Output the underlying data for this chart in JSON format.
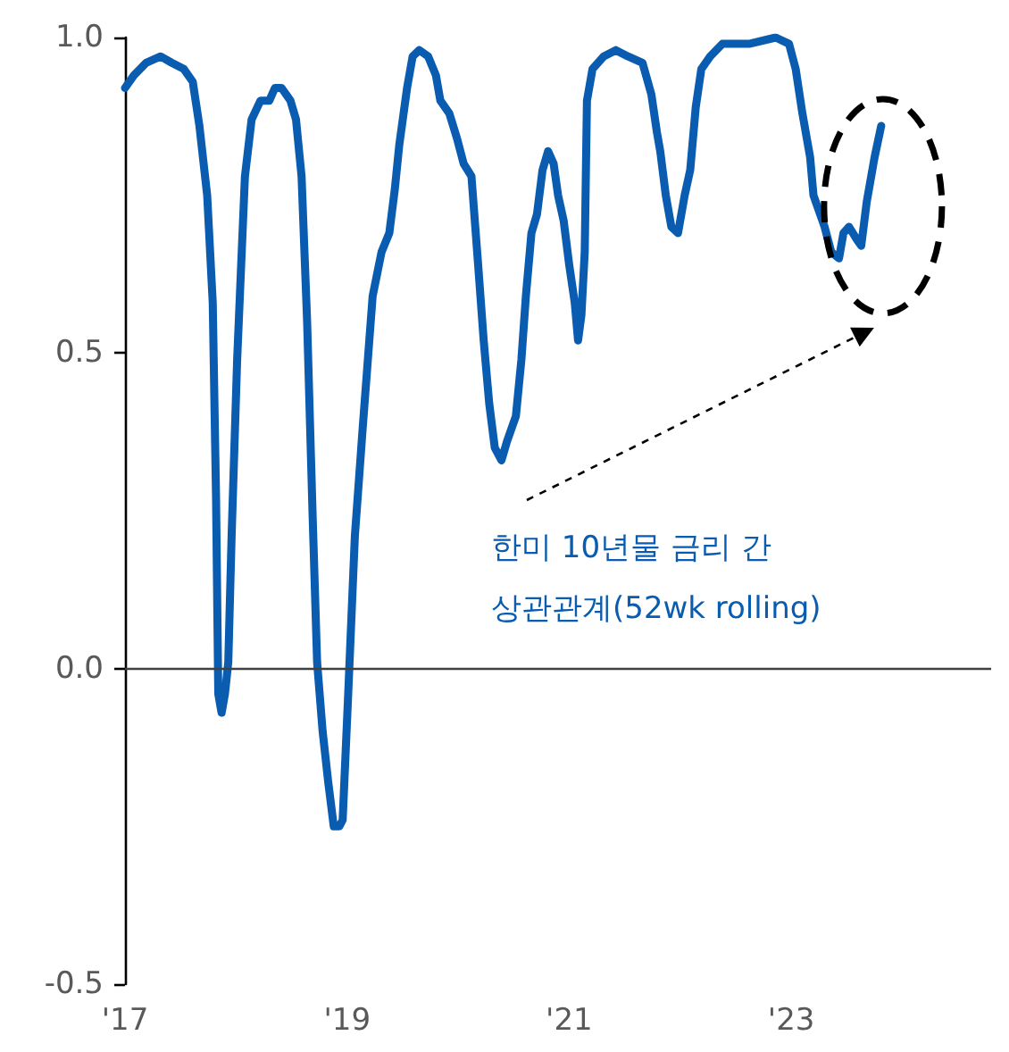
{
  "chart_data": {
    "type": "line",
    "x": [
      2017.0,
      2017.08,
      2017.19,
      2017.32,
      2017.42,
      2017.53,
      2017.61,
      2017.67,
      2017.74,
      2017.79,
      2017.82,
      2017.84,
      2017.87,
      2017.9,
      2017.93,
      2017.96,
      2018.01,
      2018.08,
      2018.14,
      2018.22,
      2018.3,
      2018.35,
      2018.41,
      2018.49,
      2018.54,
      2018.59,
      2018.64,
      2018.69,
      2018.73,
      2018.78,
      2018.83,
      2018.88,
      2018.93,
      2018.96,
      2019.01,
      2019.07,
      2019.14,
      2019.23,
      2019.31,
      2019.38,
      2019.43,
      2019.47,
      2019.54,
      2019.59,
      2019.65,
      2019.73,
      2019.8,
      2019.84,
      2019.92,
      2019.99,
      2020.05,
      2020.12,
      2020.18,
      2020.23,
      2020.28,
      2020.33,
      2020.39,
      2020.44,
      2020.52,
      2020.57,
      2020.61,
      2020.66,
      2020.71,
      2020.76,
      2020.81,
      2020.86,
      2020.9,
      2020.95,
      2021.0,
      2021.05,
      2021.08,
      2021.11,
      2021.14,
      2021.16,
      2021.21,
      2021.31,
      2021.42,
      2021.53,
      2021.66,
      2021.74,
      2021.79,
      2021.82,
      2021.87,
      2021.92,
      2021.98,
      2022.04,
      2022.09,
      2022.14,
      2022.19,
      2022.27,
      2022.38,
      2022.51,
      2022.62,
      2022.86,
      2022.98,
      2023.04,
      2023.1,
      2023.17,
      2023.2,
      2023.3,
      2023.36,
      2023.43,
      2023.47,
      2023.52,
      2023.59,
      2023.63,
      2023.68,
      2023.75,
      2023.81
    ],
    "series": [
      {
        "color": "#0a5cb0",
        "values": [
          0.92,
          0.94,
          0.96,
          0.97,
          0.96,
          0.95,
          0.93,
          0.86,
          0.75,
          0.58,
          0.27,
          -0.04,
          -0.07,
          -0.04,
          0.01,
          0.21,
          0.49,
          0.78,
          0.87,
          0.9,
          0.9,
          0.92,
          0.92,
          0.9,
          0.87,
          0.78,
          0.55,
          0.24,
          0.01,
          -0.1,
          -0.18,
          -0.25,
          -0.25,
          -0.24,
          -0.04,
          0.21,
          0.38,
          0.59,
          0.66,
          0.69,
          0.76,
          0.83,
          0.92,
          0.97,
          0.98,
          0.97,
          0.94,
          0.9,
          0.88,
          0.84,
          0.8,
          0.78,
          0.64,
          0.52,
          0.42,
          0.35,
          0.33,
          0.36,
          0.4,
          0.49,
          0.59,
          0.69,
          0.72,
          0.79,
          0.82,
          0.8,
          0.75,
          0.71,
          0.64,
          0.58,
          0.52,
          0.56,
          0.66,
          0.9,
          0.95,
          0.97,
          0.98,
          0.97,
          0.96,
          0.91,
          0.85,
          0.82,
          0.75,
          0.7,
          0.69,
          0.75,
          0.79,
          0.89,
          0.95,
          0.97,
          0.99,
          0.99,
          0.99,
          1.0,
          0.99,
          0.95,
          0.88,
          0.81,
          0.75,
          0.7,
          0.66,
          0.65,
          0.69,
          0.7,
          0.68,
          0.67,
          0.74,
          0.81,
          0.86
        ]
      }
    ],
    "xlim": [
      2017,
      2024.8
    ],
    "xticks": [
      {
        "value": 2017,
        "label": "'17"
      },
      {
        "value": 2019,
        "label": "'19"
      },
      {
        "value": 2021,
        "label": "'21"
      },
      {
        "value": 2023,
        "label": "'23"
      }
    ],
    "ylim": [
      -0.5,
      1.0
    ],
    "yticks": [
      {
        "value": -0.5,
        "label": "-0.5"
      },
      {
        "value": 0,
        "label": "0.0"
      },
      {
        "value": 0.5,
        "label": "0.5"
      },
      {
        "value": 1.0,
        "label": "1.0"
      }
    ],
    "ref_lines": [
      {
        "axis": "y",
        "value": 0,
        "color": "#404040"
      }
    ],
    "annotations": [
      "한미 10년물 금리 간\n상관관계(52wk rolling)"
    ],
    "grid": false,
    "marker": "none",
    "line_style": "solid"
  }
}
